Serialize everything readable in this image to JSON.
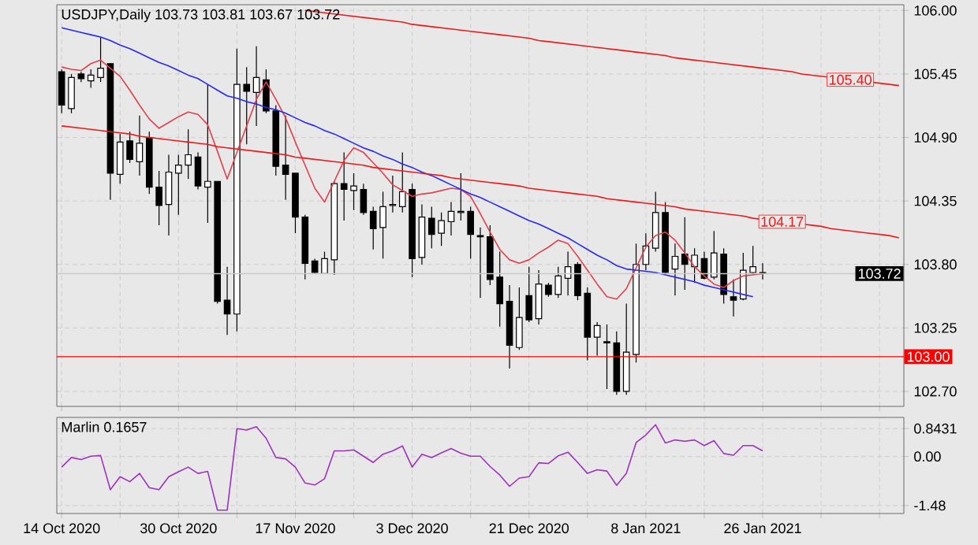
{
  "chart_data": [
    {
      "type": "candlestick",
      "title": "USDJPY,Daily 103.73 103.81 103.67 103.72",
      "color": "#000000",
      "categories": [
        null,
        null,
        null,
        null,
        null,
        null,
        null,
        null,
        null,
        null,
        null,
        null,
        null,
        null,
        null,
        null,
        null,
        null,
        null,
        null,
        null,
        null,
        null,
        null,
        null,
        null,
        null,
        null,
        null,
        null,
        null,
        null,
        null,
        null,
        null,
        null,
        null,
        null,
        null,
        null,
        null,
        null,
        null,
        null,
        null,
        null,
        null,
        null,
        null,
        null,
        null,
        null,
        null,
        null,
        null,
        null,
        null,
        null,
        null,
        null,
        null,
        null,
        null,
        null,
        null,
        null,
        null,
        null,
        null,
        null,
        null,
        null,
        null,
        null,
        null,
        null,
        null,
        null,
        null,
        null,
        null,
        null,
        null,
        null,
        null,
        null,
        null
      ],
      "ohlc": [
        [
          105.47,
          105.49,
          105.11,
          105.18
        ],
        [
          105.15,
          105.45,
          105.11,
          105.42
        ],
        [
          105.45,
          105.47,
          105.38,
          105.41
        ],
        [
          105.39,
          105.49,
          105.33,
          105.44
        ],
        [
          105.42,
          105.77,
          105.38,
          105.5
        ],
        [
          105.54,
          105.54,
          104.36,
          104.59
        ],
        [
          104.58,
          104.93,
          104.5,
          104.86
        ],
        [
          104.87,
          104.95,
          104.68,
          104.71
        ],
        [
          104.69,
          105.09,
          104.57,
          104.85
        ],
        [
          104.9,
          104.95,
          104.41,
          104.47
        ],
        [
          104.47,
          104.61,
          104.14,
          104.31
        ],
        [
          104.32,
          104.75,
          104.05,
          104.6
        ],
        [
          104.59,
          104.75,
          104.23,
          104.66
        ],
        [
          104.66,
          104.97,
          104.54,
          104.75
        ],
        [
          104.73,
          104.77,
          104.45,
          104.48
        ],
        [
          104.47,
          105.36,
          104.16,
          104.52
        ],
        [
          104.52,
          104.52,
          103.46,
          103.48
        ],
        [
          103.49,
          103.78,
          103.19,
          103.37
        ],
        [
          103.37,
          105.67,
          103.22,
          105.36
        ],
        [
          105.36,
          105.51,
          104.84,
          105.3
        ],
        [
          105.29,
          105.69,
          105.0,
          105.42
        ],
        [
          105.4,
          105.49,
          105.11,
          105.13
        ],
        [
          105.13,
          105.18,
          104.57,
          104.65
        ],
        [
          104.66,
          105.09,
          104.36,
          104.58
        ],
        [
          104.59,
          104.59,
          104.07,
          104.21
        ],
        [
          104.21,
          104.23,
          103.67,
          103.81
        ],
        [
          103.83,
          103.85,
          103.72,
          103.73
        ],
        [
          103.72,
          103.91,
          103.72,
          103.85
        ],
        [
          103.84,
          104.52,
          103.71,
          104.5
        ],
        [
          104.5,
          104.77,
          104.18,
          104.45
        ],
        [
          104.44,
          104.59,
          104.27,
          104.48
        ],
        [
          104.45,
          104.5,
          104.23,
          104.25
        ],
        [
          104.26,
          104.3,
          103.93,
          104.11
        ],
        [
          104.12,
          104.43,
          103.85,
          104.3
        ],
        [
          104.31,
          104.57,
          104.25,
          104.32
        ],
        [
          104.3,
          104.77,
          104.25,
          104.43
        ],
        [
          104.45,
          104.5,
          103.69,
          103.85
        ],
        [
          103.86,
          104.32,
          103.8,
          104.21
        ],
        [
          104.2,
          104.3,
          103.94,
          104.06
        ],
        [
          104.07,
          104.25,
          103.96,
          104.18
        ],
        [
          104.17,
          104.34,
          104.05,
          104.26
        ],
        [
          104.25,
          104.59,
          104.18,
          104.26
        ],
        [
          104.26,
          104.3,
          103.85,
          104.06
        ],
        [
          104.05,
          104.12,
          103.51,
          104.04
        ],
        [
          104.04,
          104.14,
          103.62,
          103.67
        ],
        [
          103.69,
          103.91,
          103.26,
          103.46
        ],
        [
          103.48,
          103.62,
          102.9,
          103.1
        ],
        [
          103.08,
          103.6,
          103.06,
          103.34
        ],
        [
          103.53,
          103.78,
          103.3,
          103.32
        ],
        [
          103.33,
          103.75,
          103.28,
          103.63
        ],
        [
          103.62,
          103.64,
          103.52,
          103.54
        ],
        [
          103.54,
          103.78,
          103.51,
          103.7
        ],
        [
          103.68,
          103.91,
          103.53,
          103.78
        ],
        [
          103.8,
          103.82,
          103.49,
          103.53
        ],
        [
          103.55,
          103.6,
          102.97,
          103.17
        ],
        [
          103.17,
          103.3,
          103.01,
          103.27
        ],
        [
          103.13,
          103.28,
          102.72,
          103.12
        ],
        [
          103.12,
          103.22,
          102.67,
          102.7
        ],
        [
          102.7,
          103.46,
          102.67,
          103.04
        ],
        [
          103.02,
          103.98,
          102.95,
          103.8
        ],
        [
          103.8,
          104.07,
          103.75,
          103.96
        ],
        [
          103.94,
          104.43,
          103.91,
          104.25
        ],
        [
          104.25,
          104.34,
          103.71,
          103.73
        ],
        [
          103.76,
          103.98,
          103.53,
          103.87
        ],
        [
          103.89,
          104.21,
          103.58,
          103.8
        ],
        [
          103.78,
          103.94,
          103.64,
          103.88
        ],
        [
          103.85,
          103.91,
          103.67,
          103.68
        ],
        [
          103.69,
          104.09,
          103.67,
          103.9
        ],
        [
          103.89,
          103.94,
          103.46,
          103.54
        ],
        [
          103.52,
          103.67,
          103.35,
          103.49
        ],
        [
          103.5,
          103.9,
          103.49,
          103.75
        ],
        [
          103.73,
          103.96,
          103.71,
          103.78
        ],
        [
          103.73,
          103.81,
          103.67,
          103.72
        ],
        null,
        null,
        null,
        null,
        null,
        null,
        null,
        null,
        null,
        null,
        null,
        null,
        null,
        null
      ],
      "series": [
        {
          "type": "line",
          "color": "#e0404c",
          "values": [
            105.51,
            105.49,
            105.48,
            105.54,
            105.57,
            105.5,
            105.43,
            105.31,
            105.18,
            105.06,
            104.98,
            105.03,
            105.08,
            105.12,
            105.1,
            105.01,
            104.78,
            104.54,
            104.77,
            105.0,
            105.23,
            105.38,
            105.23,
            105.07,
            104.86,
            104.66,
            104.46,
            104.34,
            104.52,
            104.7,
            104.81,
            104.77,
            104.68,
            104.59,
            104.49,
            104.44,
            104.39,
            104.41,
            104.42,
            104.44,
            104.46,
            104.45,
            104.39,
            104.24,
            104.08,
            103.93,
            103.84,
            103.81,
            103.84,
            103.9,
            103.95,
            104.01,
            103.98,
            103.87,
            103.75,
            103.63,
            103.52,
            103.5,
            103.59,
            103.77,
            103.95,
            104.05,
            104.08,
            104.01,
            103.9,
            103.78,
            103.7,
            103.63,
            103.6,
            103.66,
            103.7,
            103.71,
            103.72,
            null,
            null,
            null,
            null,
            null,
            null,
            null,
            null,
            null,
            null,
            null,
            null,
            null,
            null
          ]
        },
        {
          "type": "line",
          "color": "#2828f0",
          "values": [
            105.85,
            105.83,
            105.81,
            105.79,
            105.77,
            105.74,
            105.7,
            105.67,
            105.63,
            105.59,
            105.55,
            105.52,
            105.48,
            105.44,
            105.41,
            105.36,
            105.31,
            105.26,
            105.24,
            105.21,
            105.19,
            105.16,
            105.14,
            105.11,
            105.07,
            105.03,
            105.0,
            104.96,
            104.93,
            104.89,
            104.85,
            104.81,
            104.78,
            104.74,
            104.71,
            104.67,
            104.64,
            104.6,
            104.57,
            104.53,
            104.49,
            104.45,
            104.41,
            104.38,
            104.34,
            104.3,
            104.26,
            104.22,
            104.18,
            104.15,
            104.11,
            104.07,
            104.03,
            103.98,
            103.93,
            103.88,
            103.84,
            103.79,
            103.76,
            103.75,
            103.74,
            103.73,
            103.71,
            103.69,
            103.67,
            103.65,
            103.62,
            103.6,
            103.58,
            103.56,
            103.54,
            103.52,
            null,
            null,
            null,
            null,
            null,
            null,
            null,
            null,
            null,
            null,
            null,
            null,
            null,
            null,
            null
          ]
        },
        {
          "type": "line",
          "color": "#f01818",
          "values": [
            null,
            null,
            null,
            null,
            null,
            null,
            null,
            null,
            null,
            null,
            null,
            null,
            null,
            null,
            null,
            null,
            null,
            null,
            null,
            null,
            null,
            null,
            null,
            null,
            null,
            106.0,
            105.99,
            105.98,
            105.97,
            105.96,
            105.95,
            105.94,
            105.93,
            105.92,
            105.91,
            105.9,
            105.88,
            105.87,
            105.86,
            105.85,
            105.84,
            105.83,
            105.82,
            105.81,
            105.8,
            105.79,
            105.78,
            105.77,
            105.76,
            105.74,
            105.73,
            105.72,
            105.71,
            105.7,
            105.69,
            105.68,
            105.67,
            105.66,
            105.65,
            105.64,
            105.63,
            105.62,
            105.61,
            105.59,
            105.58,
            105.57,
            105.56,
            105.55,
            105.54,
            105.53,
            105.52,
            105.51,
            105.5,
            105.49,
            105.48,
            105.47,
            105.45,
            105.44,
            105.43,
            105.42,
            105.41,
            105.4,
            105.39,
            105.38,
            105.37,
            105.36,
            105.35
          ]
        },
        {
          "type": "line",
          "color": "#f01818",
          "values": [
            105.0,
            104.99,
            104.98,
            104.97,
            104.96,
            104.95,
            104.94,
            104.93,
            104.91,
            104.9,
            104.89,
            104.88,
            104.87,
            104.86,
            104.85,
            104.84,
            104.82,
            104.81,
            104.8,
            104.79,
            104.78,
            104.77,
            104.76,
            104.75,
            104.73,
            104.72,
            104.71,
            104.7,
            104.69,
            104.68,
            104.67,
            104.66,
            104.64,
            104.63,
            104.62,
            104.61,
            104.6,
            104.59,
            104.58,
            104.57,
            104.55,
            104.54,
            104.53,
            104.52,
            104.51,
            104.5,
            104.49,
            104.48,
            104.46,
            104.45,
            104.44,
            104.43,
            104.42,
            104.41,
            104.4,
            104.39,
            104.37,
            104.36,
            104.35,
            104.34,
            104.33,
            104.32,
            104.31,
            104.3,
            104.28,
            104.27,
            104.26,
            104.25,
            104.24,
            104.23,
            104.22,
            104.2,
            104.19,
            104.18,
            104.17,
            104.16,
            104.15,
            104.14,
            104.13,
            104.11,
            104.1,
            104.09,
            104.08,
            104.07,
            104.06,
            104.05,
            104.03
          ]
        }
      ],
      "annotations": [
        {
          "text": "105.40",
          "y": 105.4
        },
        {
          "text": "104.17",
          "y": 104.17
        }
      ],
      "ref_lines": [
        {
          "axis": "y",
          "value": 103.0,
          "label": "103.00",
          "color": "#ff0000"
        },
        {
          "axis": "y",
          "value": 103.72,
          "label": "103.72",
          "color": "#c8c8c8"
        }
      ],
      "ylim": [
        102.57,
        106.05
      ],
      "yticks": [
        {
          "value": 106,
          "label": "106.00"
        },
        {
          "value": 105.45,
          "label": "105.45"
        },
        {
          "value": 104.9,
          "label": "104.90"
        },
        {
          "value": 104.35,
          "label": "104.35"
        },
        {
          "value": 103.8,
          "label": "103.80"
        },
        {
          "value": 103.25,
          "label": "103.25"
        },
        {
          "value": 102.7,
          "label": "102.70"
        }
      ],
      "tick_labels": "y",
      "grid": true
    },
    {
      "type": "line",
      "title": "Marlin 0.1657",
      "categories": [
        "14 Oct 2020",
        null,
        null,
        null,
        null,
        null,
        null,
        null,
        null,
        null,
        null,
        null,
        "30 Oct 2020",
        null,
        null,
        null,
        null,
        null,
        null,
        null,
        null,
        null,
        null,
        null,
        "17 Nov 2020",
        null,
        null,
        null,
        null,
        null,
        null,
        null,
        null,
        null,
        null,
        null,
        "3 Dec 2020",
        null,
        null,
        null,
        null,
        null,
        null,
        null,
        null,
        null,
        null,
        null,
        "21 Dec 2020",
        null,
        null,
        null,
        null,
        null,
        null,
        null,
        null,
        null,
        null,
        null,
        "8 Jan 2021",
        null,
        null,
        null,
        null,
        null,
        null,
        null,
        null,
        null,
        null,
        null,
        "26 Jan 2021",
        null,
        null,
        null,
        null,
        null,
        null,
        null,
        null,
        null,
        null,
        null,
        null,
        null,
        null
      ],
      "series": [
        {
          "color": "#a030c0",
          "values": [
            -0.32,
            -0.03,
            -0.09,
            0.01,
            0.03,
            -1.0,
            -0.61,
            -0.76,
            -0.51,
            -0.94,
            -1.0,
            -0.61,
            -0.46,
            -0.32,
            -0.51,
            -0.45,
            -1.62,
            -1.62,
            0.84,
            0.8,
            0.9,
            0.55,
            -0.03,
            -0.07,
            -0.32,
            -0.8,
            -0.86,
            -0.67,
            0.17,
            0.17,
            0.2,
            0.01,
            -0.18,
            0.07,
            0.17,
            0.32,
            -0.32,
            0.07,
            -0.03,
            0.11,
            0.24,
            0.1,
            0.01,
            0.01,
            -0.3,
            -0.56,
            -0.9,
            -0.65,
            -0.61,
            -0.19,
            -0.21,
            0.02,
            0.13,
            -0.18,
            -0.51,
            -0.4,
            -0.44,
            -0.87,
            -0.51,
            0.42,
            0.65,
            0.96,
            0.41,
            0.5,
            0.46,
            0.5,
            0.33,
            0.48,
            0.09,
            0.04,
            0.33,
            0.33,
            0.17,
            null,
            null,
            null,
            null,
            null,
            null,
            null,
            null,
            null,
            null,
            null,
            null,
            null,
            null
          ]
        }
      ],
      "ylim": [
        -1.72,
        1.18
      ],
      "yticks": [
        {
          "value": 0.8431,
          "label": "0.8431"
        },
        {
          "value": 0,
          "label": "0.00"
        },
        {
          "value": -1.48,
          "label": "-1.48"
        }
      ],
      "grid": true
    }
  ]
}
